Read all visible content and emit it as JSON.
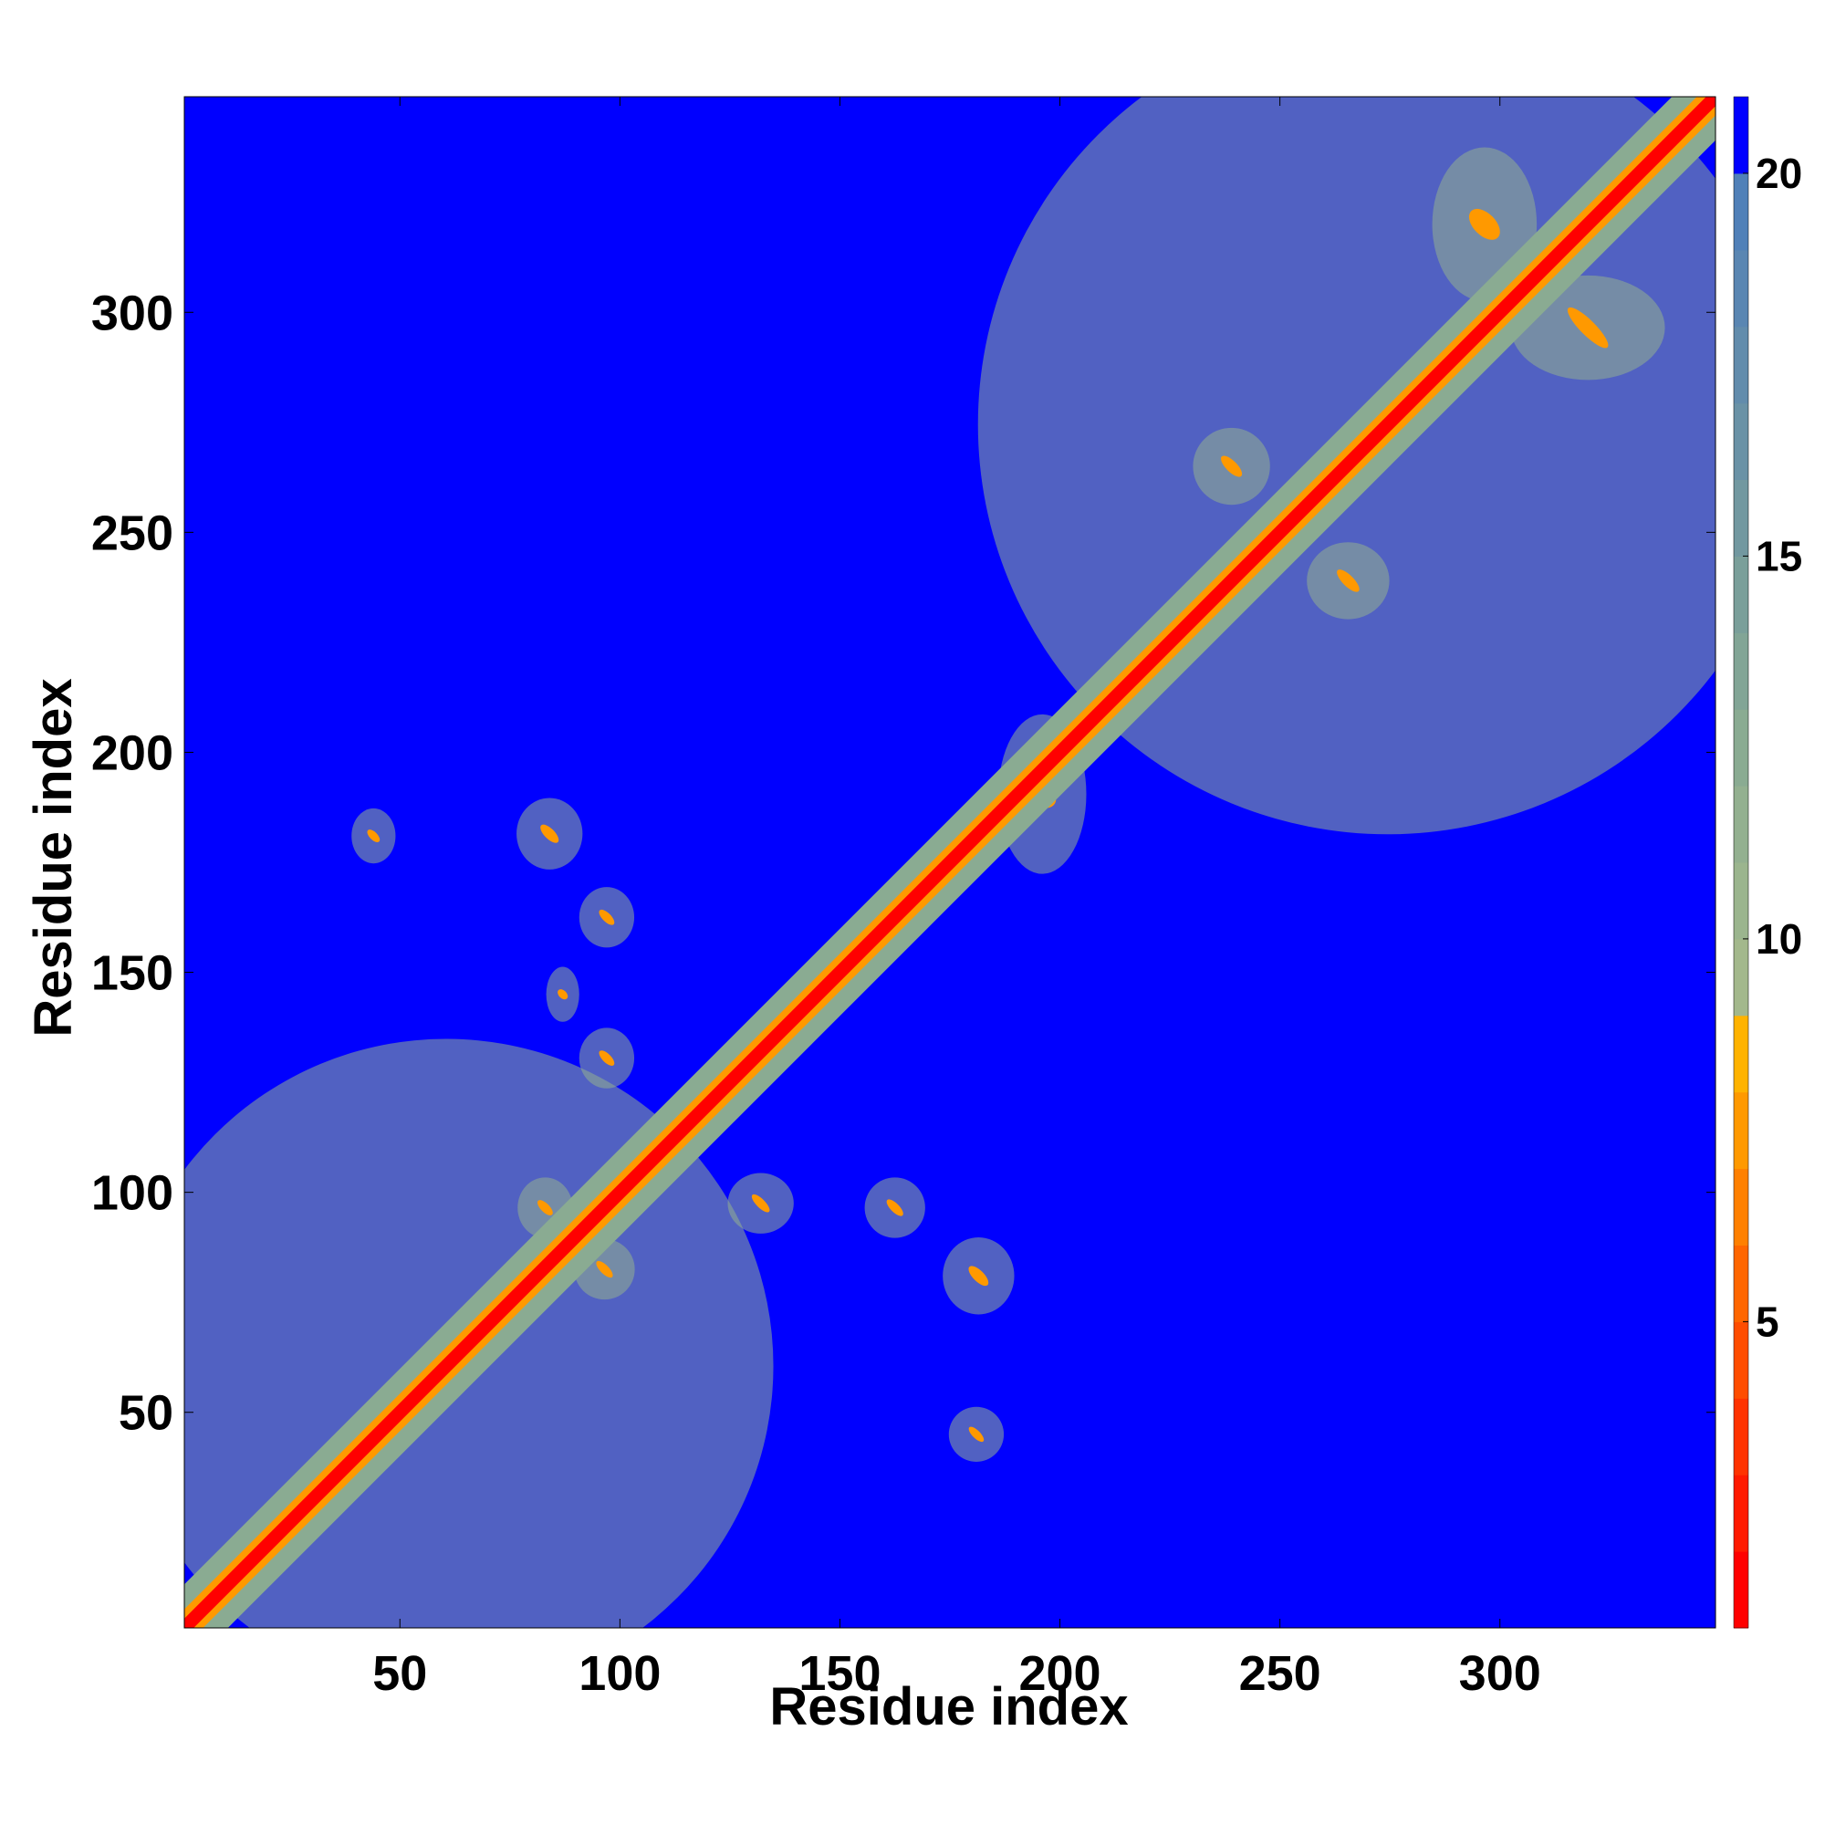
{
  "chart_data": {
    "type": "heatmap",
    "title": "",
    "xlabel": "Residue index",
    "ylabel": "Residue index",
    "xlim": [
      1,
      349
    ],
    "ylim": [
      1,
      349
    ],
    "x_ticks": [
      50,
      100,
      150,
      200,
      250,
      300
    ],
    "y_ticks": [
      50,
      100,
      150,
      200,
      250,
      300
    ],
    "colorbar": {
      "ticks": [
        5,
        10,
        15,
        20
      ],
      "range": [
        1,
        21
      ],
      "levels": [
        {
          "from": 1,
          "to": 2,
          "color": "#ff0000"
        },
        {
          "from": 2,
          "to": 3,
          "color": "#ff1a00"
        },
        {
          "from": 3,
          "to": 4,
          "color": "#ff3300"
        },
        {
          "from": 4,
          "to": 5,
          "color": "#ff4d00"
        },
        {
          "from": 5,
          "to": 6,
          "color": "#ff6600"
        },
        {
          "from": 6,
          "to": 7,
          "color": "#ff8000"
        },
        {
          "from": 7,
          "to": 8,
          "color": "#ff9900"
        },
        {
          "from": 8,
          "to": 9,
          "color": "#ffb300"
        },
        {
          "from": 9,
          "to": 10,
          "color": "#a3b88c"
        },
        {
          "from": 10,
          "to": 11,
          "color": "#9bb58e"
        },
        {
          "from": 11,
          "to": 12,
          "color": "#93b090"
        },
        {
          "from": 12,
          "to": 13,
          "color": "#8aab92"
        },
        {
          "from": 13,
          "to": 14,
          "color": "#82a596"
        },
        {
          "from": 14,
          "to": 15,
          "color": "#7a9f9a"
        },
        {
          "from": 15,
          "to": 16,
          "color": "#7298a0"
        },
        {
          "from": 16,
          "to": 17,
          "color": "#6a92a6"
        },
        {
          "from": 17,
          "to": 18,
          "color": "#628cac"
        },
        {
          "from": 18,
          "to": 19,
          "color": "#5a86b2"
        },
        {
          "from": 19,
          "to": 20,
          "color": "#5080b8"
        },
        {
          "from": 20,
          "to": 21,
          "color": "#0000ff"
        }
      ]
    },
    "background_value": 21,
    "diagonal_band": {
      "core_width": 1.5,
      "inner_width": 3,
      "outer_width": 7
    },
    "regions": [
      {
        "x": [
          1,
          120
        ],
        "y": [
          1,
          120
        ],
        "level": "band"
      },
      {
        "x": [
          200,
          349
        ],
        "y": [
          200,
          349
        ],
        "level": "band"
      },
      {
        "x": [
          78,
          90
        ],
        "y": [
          175,
          188
        ],
        "level": "contact"
      },
      {
        "x": [
          40,
          48
        ],
        "y": [
          176,
          186
        ],
        "level": "contact"
      },
      {
        "x": [
          176,
          186
        ],
        "y": [
          40,
          50
        ],
        "level": "contact"
      },
      {
        "x": [
          175,
          188
        ],
        "y": [
          74,
          88
        ],
        "level": "contact"
      },
      {
        "x": [
          157,
          168
        ],
        "y": [
          91,
          102
        ],
        "level": "contact"
      },
      {
        "x": [
          126,
          138
        ],
        "y": [
          92,
          103
        ],
        "level": "contact"
      },
      {
        "x": [
          78,
          88
        ],
        "y": [
          91,
          102
        ],
        "level": "contact"
      },
      {
        "x": [
          91,
          102
        ],
        "y": [
          77,
          88
        ],
        "level": "contact"
      },
      {
        "x": [
          92,
          102
        ],
        "y": [
          157,
          168
        ],
        "level": "contact"
      },
      {
        "x": [
          92,
          102
        ],
        "y": [
          125,
          136
        ],
        "level": "contact"
      },
      {
        "x": [
          123,
          133
        ],
        "y": [
          122,
          134
        ],
        "level": "contact"
      },
      {
        "x": [
          84,
          90
        ],
        "y": [
          140,
          150
        ],
        "level": "contact"
      },
      {
        "x": [
          188,
          204
        ],
        "y": [
          176,
          205
        ],
        "level": "contact"
      },
      {
        "x": [
          232,
          246
        ],
        "y": [
          258,
          272
        ],
        "level": "contact"
      },
      {
        "x": [
          258,
          273
        ],
        "y": [
          232,
          246
        ],
        "level": "contact"
      },
      {
        "x": [
          287,
          306
        ],
        "y": [
          306,
          334
        ],
        "level": "contact"
      },
      {
        "x": [
          306,
          334
        ],
        "y": [
          287,
          306
        ],
        "level": "contact"
      }
    ]
  }
}
